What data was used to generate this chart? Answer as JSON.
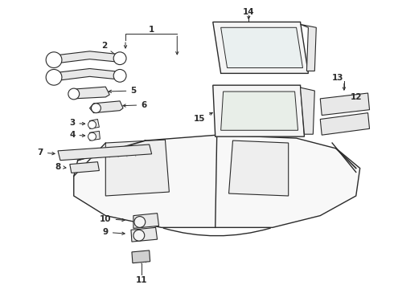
{
  "bg_color": "#ffffff",
  "fig_width": 4.9,
  "fig_height": 3.6,
  "dpi": 100,
  "line_color": "#2a2a2a",
  "fill_light": "#f5f5f5",
  "fill_mid": "#e8e8e8",
  "fill_dark": "#d0d0d0"
}
